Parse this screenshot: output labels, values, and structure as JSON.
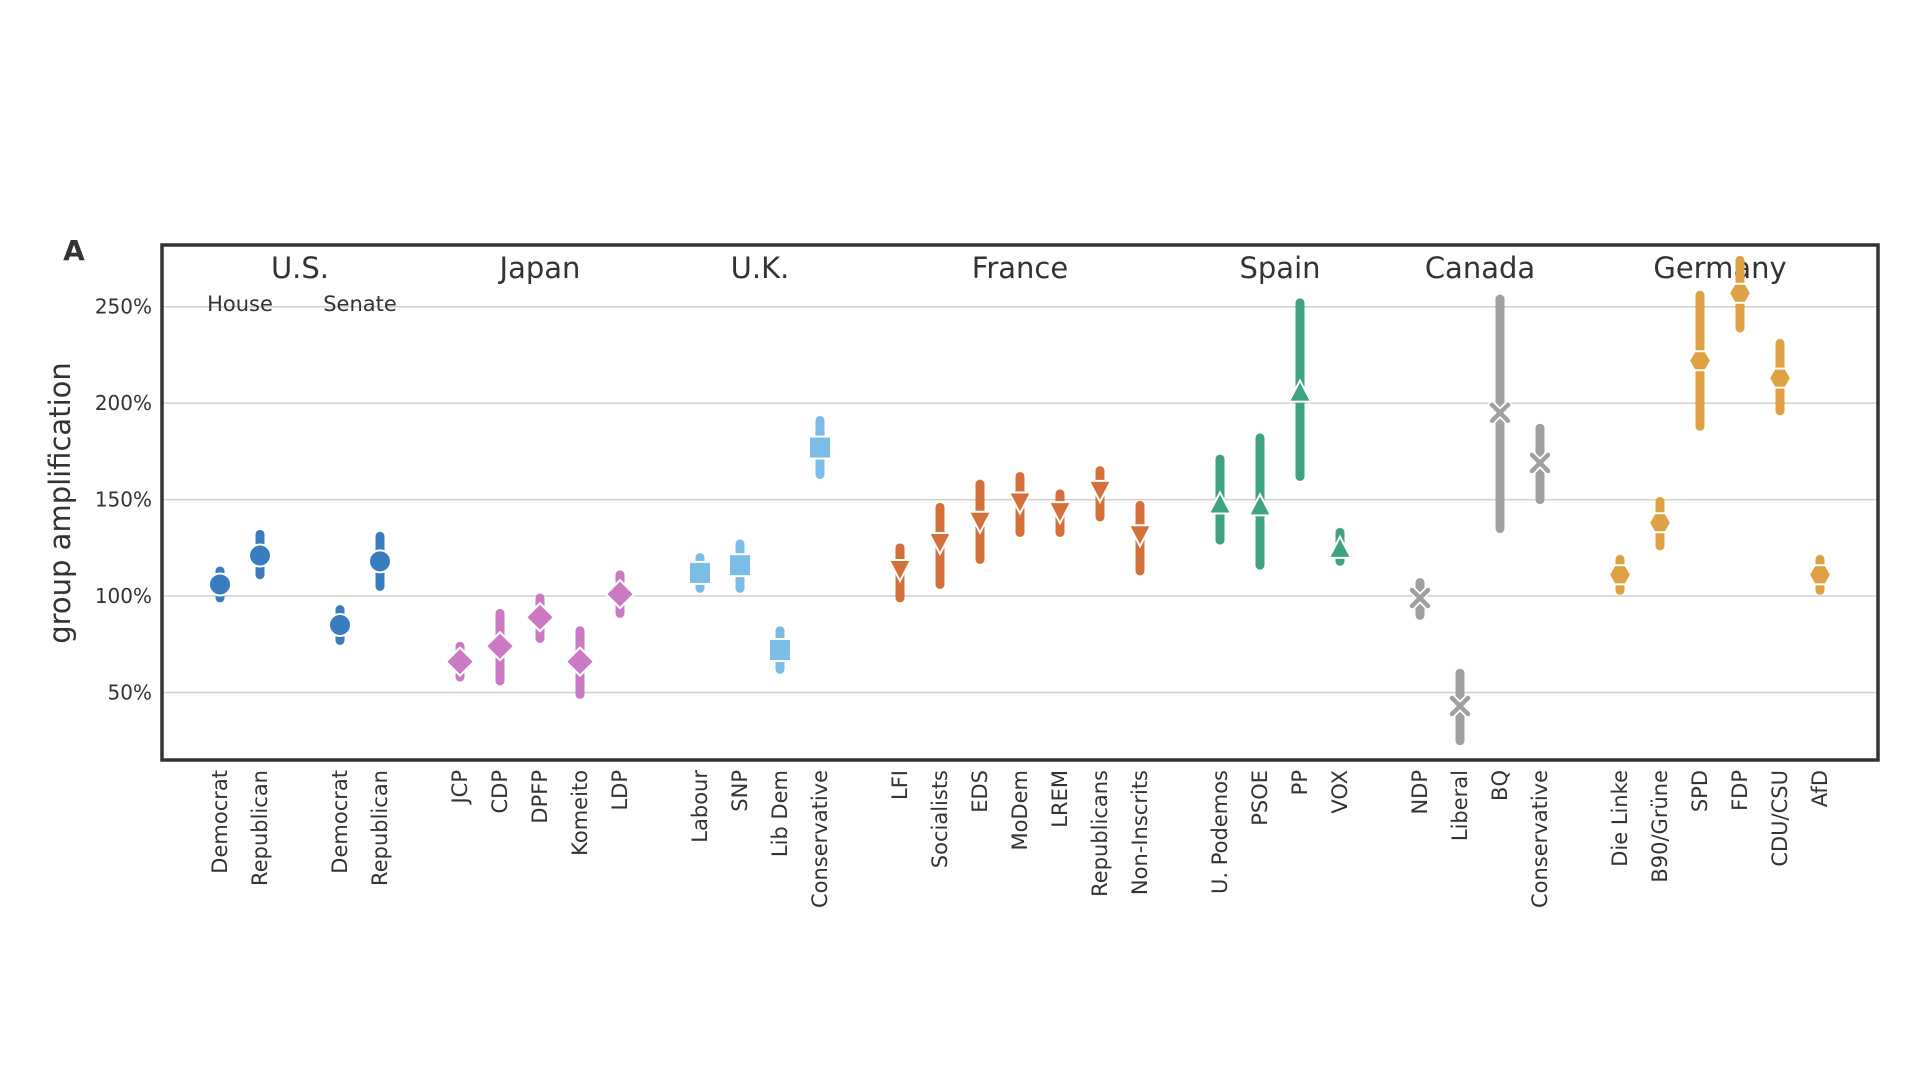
{
  "chart_data": {
    "type": "scatter",
    "panel_label": "A",
    "ylabel": "group amplification",
    "yticks": [
      {
        "value": 50,
        "label": "50%"
      },
      {
        "value": 100,
        "label": "100%"
      },
      {
        "value": 150,
        "label": "150%"
      },
      {
        "value": 200,
        "label": "200%"
      },
      {
        "value": 250,
        "label": "250%"
      }
    ],
    "ylim": [
      15,
      282
    ],
    "grid": true,
    "groups": [
      {
        "country": "U.S.",
        "color": "#3a7dbe",
        "marker": "circle",
        "subgroups": [
          {
            "label": "House",
            "parties": [
              {
                "name": "Democrat",
                "value": 106,
                "ci": [
                  99,
                  113
                ]
              },
              {
                "name": "Republican",
                "value": 121,
                "ci": [
                  111,
                  132
                ]
              }
            ]
          },
          {
            "label": "Senate",
            "parties": [
              {
                "name": "Democrat",
                "value": 85,
                "ci": [
                  77,
                  93
                ]
              },
              {
                "name": "Republican",
                "value": 118,
                "ci": [
                  105,
                  131
                ]
              }
            ]
          }
        ]
      },
      {
        "country": "Japan",
        "color": "#cc79c4",
        "marker": "diamond",
        "parties": [
          {
            "name": "JCP",
            "value": 66,
            "ci": [
              58,
              74
            ]
          },
          {
            "name": "CDP",
            "value": 74,
            "ci": [
              56,
              91
            ]
          },
          {
            "name": "DPFP",
            "value": 89,
            "ci": [
              78,
              99
            ]
          },
          {
            "name": "Komeito",
            "value": 66,
            "ci": [
              49,
              82
            ]
          },
          {
            "name": "LDP",
            "value": 101,
            "ci": [
              91,
              111
            ]
          }
        ]
      },
      {
        "country": "U.K.",
        "color": "#7cbde8",
        "marker": "square",
        "parties": [
          {
            "name": "Labour",
            "value": 112,
            "ci": [
              104,
              120
            ]
          },
          {
            "name": "SNP",
            "value": 116,
            "ci": [
              104,
              127
            ]
          },
          {
            "name": "Lib Dem",
            "value": 72,
            "ci": [
              62,
              82
            ]
          },
          {
            "name": "Conservative",
            "value": 177,
            "ci": [
              163,
              191
            ]
          }
        ]
      },
      {
        "country": "France",
        "color": "#d4713a",
        "marker": "triangle-down",
        "parties": [
          {
            "name": "LFI",
            "value": 113,
            "ci": [
              99,
              125
            ]
          },
          {
            "name": "Socialists",
            "value": 127,
            "ci": [
              106,
              146
            ]
          },
          {
            "name": "EDS",
            "value": 138,
            "ci": [
              119,
              158
            ]
          },
          {
            "name": "MoDem",
            "value": 148,
            "ci": [
              133,
              162
            ]
          },
          {
            "name": "LREM",
            "value": 143,
            "ci": [
              133,
              153
            ]
          },
          {
            "name": "Republicans",
            "value": 154,
            "ci": [
              141,
              165
            ]
          },
          {
            "name": "Non-Inscrits",
            "value": 131,
            "ci": [
              113,
              147
            ]
          }
        ]
      },
      {
        "country": "Spain",
        "color": "#3fa37f",
        "marker": "triangle-up",
        "parties": [
          {
            "name": "U. Podemos",
            "value": 148,
            "ci": [
              129,
              171
            ]
          },
          {
            "name": "PSOE",
            "value": 147,
            "ci": [
              116,
              182
            ]
          },
          {
            "name": "PP",
            "value": 206,
            "ci": [
              162,
              252
            ]
          },
          {
            "name": "VOX",
            "value": 125,
            "ci": [
              118,
              133
            ]
          }
        ]
      },
      {
        "country": "Canada",
        "color": "#a0a0a0",
        "marker": "x",
        "parties": [
          {
            "name": "NDP",
            "value": 99,
            "ci": [
              90,
              107
            ]
          },
          {
            "name": "Liberal",
            "value": 43,
            "ci": [
              25,
              60
            ]
          },
          {
            "name": "BQ",
            "value": 195,
            "ci": [
              135,
              254
            ]
          },
          {
            "name": "Conservative",
            "value": 169,
            "ci": [
              150,
              187
            ]
          }
        ]
      },
      {
        "country": "Germany",
        "color": "#dea144",
        "marker": "hexagon",
        "parties": [
          {
            "name": "Die Linke",
            "value": 111,
            "ci": [
              103,
              119
            ]
          },
          {
            "name": "B90/Grüne",
            "value": 138,
            "ci": [
              126,
              149
            ]
          },
          {
            "name": "SPD",
            "value": 222,
            "ci": [
              188,
              256
            ]
          },
          {
            "name": "FDP",
            "value": 257,
            "ci": [
              239,
              274
            ]
          },
          {
            "name": "CDU/CSU",
            "value": 213,
            "ci": [
              196,
              231
            ]
          },
          {
            "name": "AfD",
            "value": 111,
            "ci": [
              103,
              119
            ]
          }
        ]
      }
    ]
  }
}
